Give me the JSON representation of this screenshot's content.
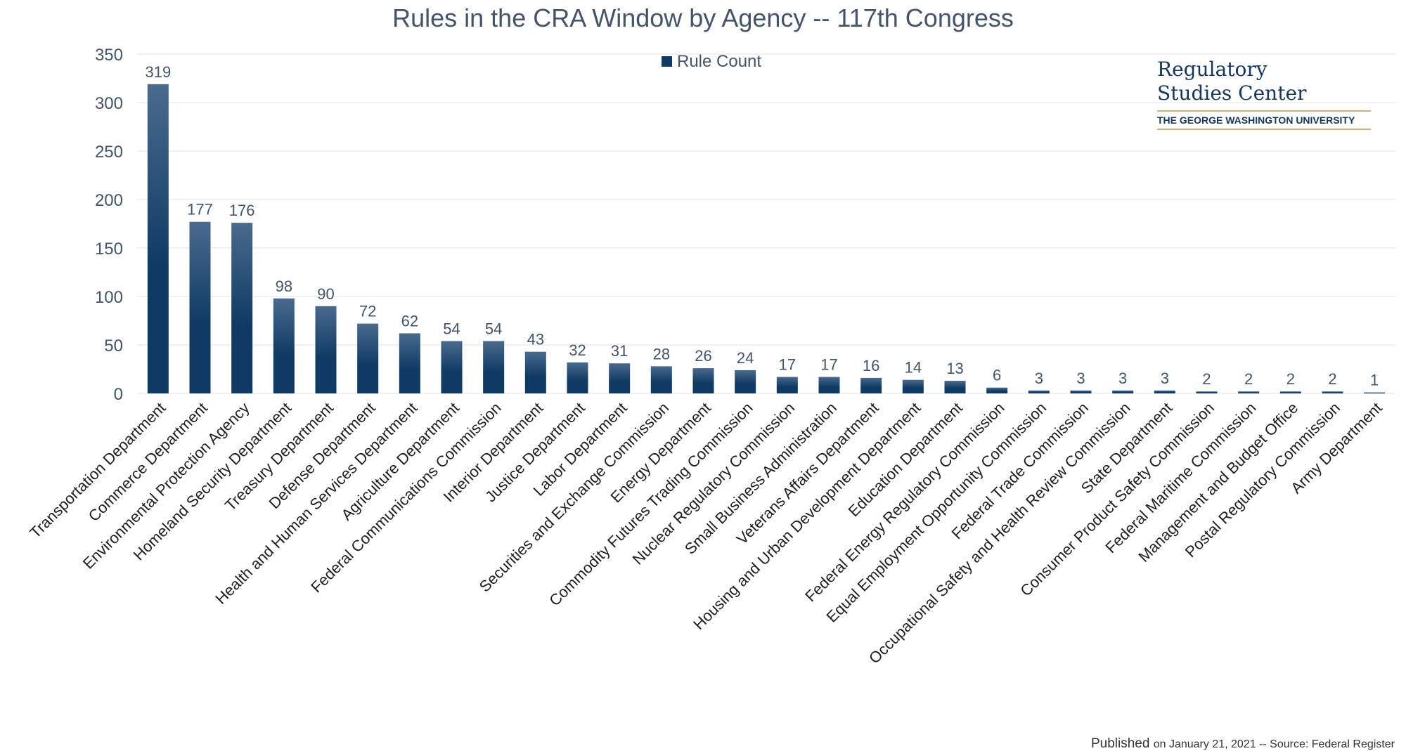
{
  "chart_data": {
    "type": "bar",
    "title": "Rules in the CRA Window by Agency -- 117th Congress",
    "series": [
      {
        "name": "Rule Count",
        "values": [
          319,
          177,
          176,
          98,
          90,
          72,
          62,
          54,
          54,
          43,
          32,
          31,
          28,
          26,
          24,
          17,
          17,
          16,
          14,
          13,
          6,
          3,
          3,
          3,
          3,
          2,
          2,
          2,
          2,
          1
        ]
      }
    ],
    "categories": [
      "Transportation Department",
      "Commerce Department",
      "Environmental Protection Agency",
      "Homeland Security Department",
      "Treasury Department",
      "Defense Department",
      "Health and Human Services Department",
      "Agriculture Department",
      "Federal Communications Commission",
      "Interior Department",
      "Justice Department",
      "Labor Department",
      "Securities and Exchange Commission",
      "Energy Department",
      "Commodity Futures Trading Commission",
      "Nuclear Regulatory Commission",
      "Small Business Administration",
      "Veterans Affairs Department",
      "Housing and Urban Development Department",
      "Education Department",
      "Federal Energy Regulatory Commission",
      "Equal Employment Opportunity Commission",
      "Federal Trade Commission",
      "Occupational Safety and Health Review Commission",
      "State Department",
      "Consumer Product Safety Commission",
      "Federal Maritime Commission",
      "Management and Budget Office",
      "Postal Regulatory Commission",
      "Army Department"
    ],
    "ylim": [
      0,
      350
    ],
    "yticks": [
      "0",
      "50",
      "100",
      "150",
      "200",
      "250",
      "300",
      "350"
    ],
    "legend_position": "top-center",
    "grid": true,
    "colors": {
      "bar_top": "#4a6a8e",
      "bar_bottom": "#0e3a63",
      "text": "#44546a"
    }
  },
  "logo": {
    "name_line1": "Regulatory",
    "name_line2": "Studies Center",
    "university": "THE GEORGE WASHINGTON UNIVERSITY"
  },
  "footer": {
    "prefix": "Published ",
    "text": "on January 21, 2021 --  Source: Federal Register"
  }
}
